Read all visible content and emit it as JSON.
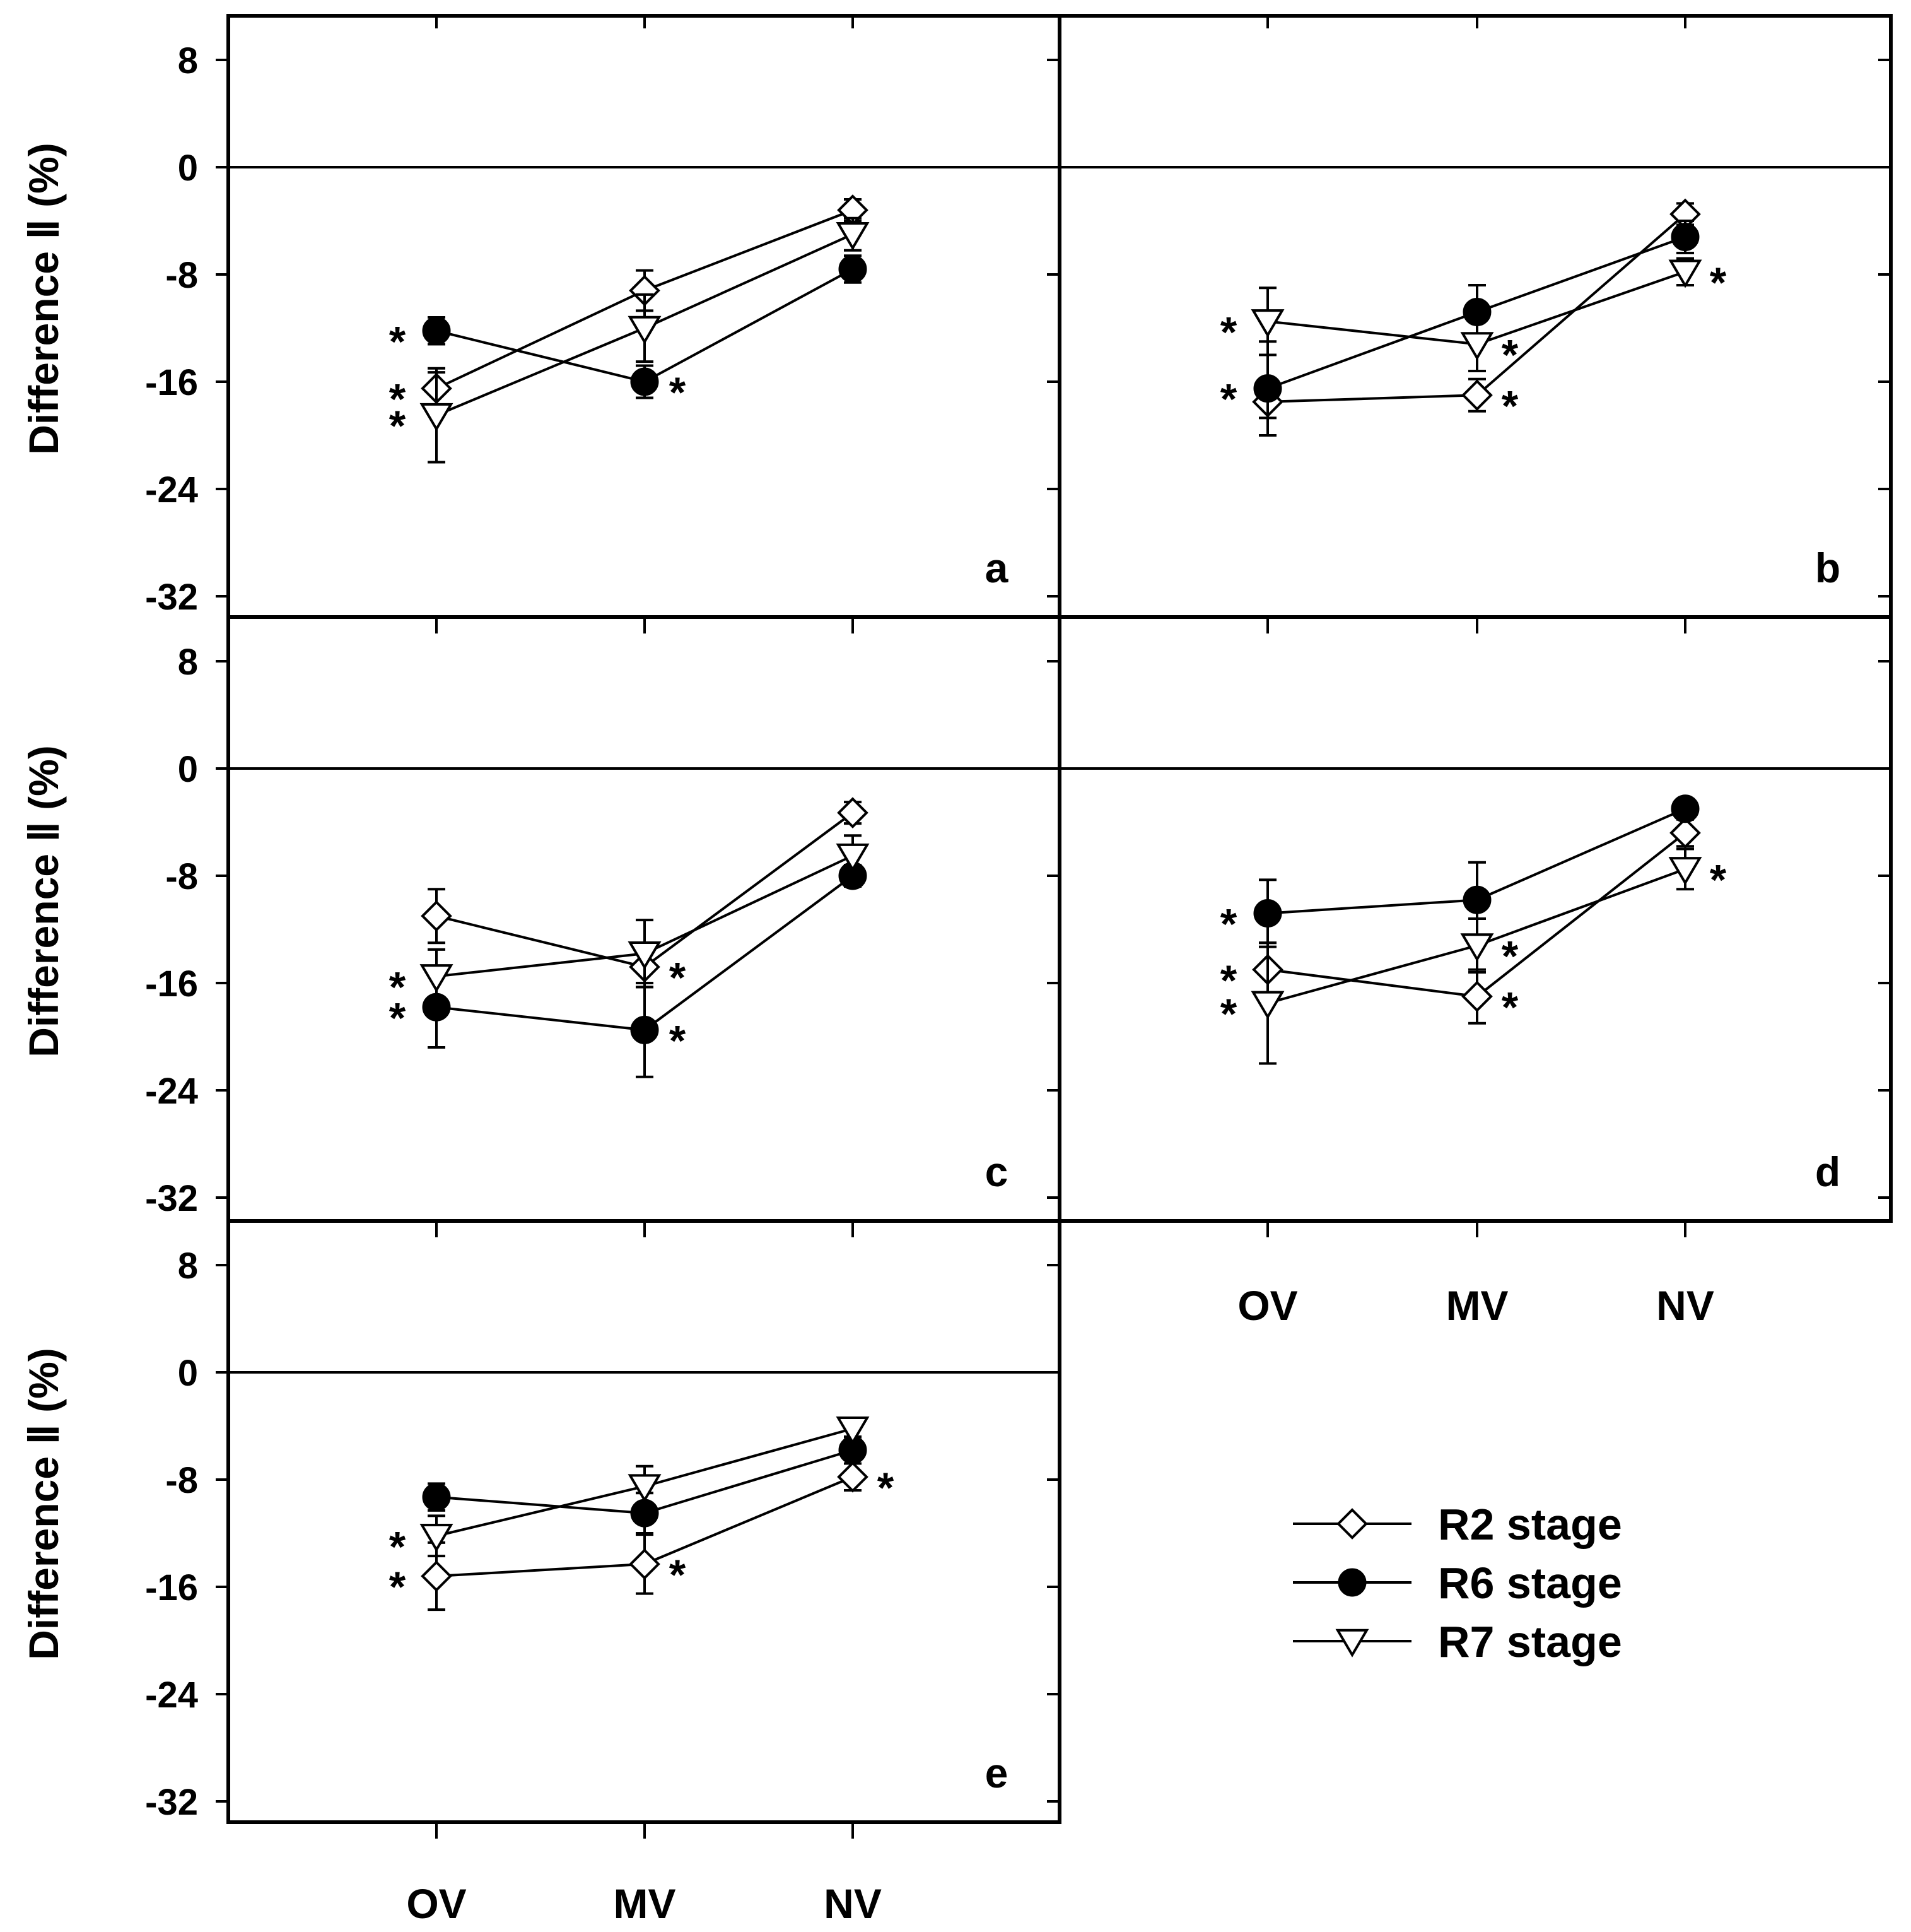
{
  "chart_data": [
    {
      "panel": "a",
      "type": "line",
      "ylabel": "Difference Ⅱ (%)",
      "categories": [
        "OV",
        "MV",
        "NV"
      ],
      "yticks": [
        8,
        0,
        -8,
        -16,
        -24,
        -32
      ],
      "ylim": [
        -35,
        10
      ],
      "zero_line": true,
      "series": [
        {
          "name": "R2 stage",
          "marker": "diamond-open",
          "values": [
            -16.5,
            -9.2,
            -3.2
          ],
          "errors": [
            1.2,
            1.5,
            0.8
          ],
          "significant": [
            true,
            false,
            false
          ]
        },
        {
          "name": "R6 stage",
          "marker": "circle-filled",
          "values": [
            -12.2,
            -16.0,
            -7.6
          ],
          "errors": [
            1.0,
            1.2,
            1.0
          ],
          "significant": [
            true,
            true,
            false
          ]
        },
        {
          "name": "R7 stage",
          "marker": "triangle-down-open",
          "values": [
            -18.5,
            -12.0,
            -5.0
          ],
          "errors": [
            3.5,
            2.5,
            1.2
          ],
          "significant": [
            true,
            false,
            false
          ]
        }
      ]
    },
    {
      "panel": "b",
      "type": "line",
      "categories": [
        "OV",
        "MV",
        "NV"
      ],
      "yticks": [
        8,
        0,
        -8,
        -16,
        -24,
        -32
      ],
      "ylim": [
        -35,
        10
      ],
      "zero_line": true,
      "series": [
        {
          "name": "R2 stage",
          "marker": "diamond-open",
          "values": [
            -17.5,
            -17.0,
            -3.5
          ],
          "errors": [
            1.2,
            1.2,
            0.8
          ],
          "significant": [
            false,
            true,
            false
          ]
        },
        {
          "name": "R6 stage",
          "marker": "circle-filled",
          "values": [
            -16.5,
            -10.8,
            -5.2
          ],
          "errors": [
            3.5,
            2.0,
            1.2
          ],
          "significant": [
            true,
            false,
            false
          ]
        },
        {
          "name": "R7 stage",
          "marker": "triangle-down-open",
          "values": [
            -11.5,
            -13.2,
            -7.8
          ],
          "errors": [
            2.5,
            2.0,
            1.0
          ],
          "significant": [
            true,
            true,
            true
          ]
        }
      ]
    },
    {
      "panel": "c",
      "type": "line",
      "ylabel": "Difference Ⅱ (%)",
      "categories": [
        "OV",
        "MV",
        "NV"
      ],
      "yticks": [
        8,
        0,
        -8,
        -16,
        -24,
        -32
      ],
      "ylim": [
        -35,
        10
      ],
      "zero_line": true,
      "series": [
        {
          "name": "R2 stage",
          "marker": "diamond-open",
          "values": [
            -11.0,
            -14.8,
            -3.3
          ],
          "errors": [
            2.0,
            1.5,
            0.8
          ],
          "significant": [
            false,
            true,
            false
          ]
        },
        {
          "name": "R6 stage",
          "marker": "circle-filled",
          "values": [
            -17.8,
            -19.5,
            -8.0
          ],
          "errors": [
            3.0,
            3.5,
            0.8
          ],
          "significant": [
            true,
            true,
            false
          ]
        },
        {
          "name": "R7 stage",
          "marker": "triangle-down-open",
          "values": [
            -15.5,
            -13.8,
            -6.5
          ],
          "errors": [
            2.0,
            2.5,
            1.5
          ],
          "significant": [
            true,
            false,
            false
          ]
        }
      ]
    },
    {
      "panel": "d",
      "type": "line",
      "categories": [
        "OV",
        "MV",
        "NV"
      ],
      "yticks": [
        8,
        0,
        -8,
        -16,
        -24,
        -32
      ],
      "ylim": [
        -35,
        10
      ],
      "zero_line": true,
      "series": [
        {
          "name": "R2 stage",
          "marker": "diamond-open",
          "values": [
            -15.0,
            -17.0,
            -4.8
          ],
          "errors": [
            2.0,
            2.0,
            1.0
          ],
          "significant": [
            true,
            true,
            false
          ]
        },
        {
          "name": "R6 stage",
          "marker": "circle-filled",
          "values": [
            -10.8,
            -9.8,
            -3.0
          ],
          "errors": [
            2.5,
            2.8,
            0.5
          ],
          "significant": [
            true,
            false,
            false
          ]
        },
        {
          "name": "R7 stage",
          "marker": "triangle-down-open",
          "values": [
            -17.5,
            -13.2,
            -7.5
          ],
          "errors": [
            4.5,
            2.0,
            1.5
          ],
          "significant": [
            true,
            true,
            true
          ]
        }
      ]
    },
    {
      "panel": "e",
      "type": "line",
      "xlabel_shown": true,
      "ylabel": "Difference Ⅱ (%)",
      "categories": [
        "OV",
        "MV",
        "NV"
      ],
      "yticks": [
        8,
        0,
        -8,
        -16,
        -24,
        -32
      ],
      "ylim": [
        -35,
        10
      ],
      "zero_line": true,
      "series": [
        {
          "name": "R2 stage",
          "marker": "diamond-open",
          "values": [
            -15.2,
            -14.3,
            -7.8
          ],
          "errors": [
            2.5,
            2.2,
            1.0
          ],
          "significant": [
            true,
            true,
            true
          ]
        },
        {
          "name": "R6 stage",
          "marker": "circle-filled",
          "values": [
            -9.3,
            -10.5,
            -5.8
          ],
          "errors": [
            1.0,
            1.5,
            1.0
          ],
          "significant": [
            false,
            false,
            false
          ]
        },
        {
          "name": "R7 stage",
          "marker": "triangle-down-open",
          "values": [
            -12.2,
            -8.5,
            -4.2
          ],
          "errors": [
            1.5,
            1.5,
            0.8
          ],
          "significant": [
            true,
            false,
            false
          ]
        }
      ]
    }
  ],
  "star_symbol": "*",
  "legend": {
    "placement": "bottom-right",
    "items": [
      {
        "label": "R2 stage",
        "marker": "diamond-open"
      },
      {
        "label": "R6 stage",
        "marker": "circle-filled"
      },
      {
        "label": "R7 stage",
        "marker": "triangle-down-open"
      }
    ]
  }
}
